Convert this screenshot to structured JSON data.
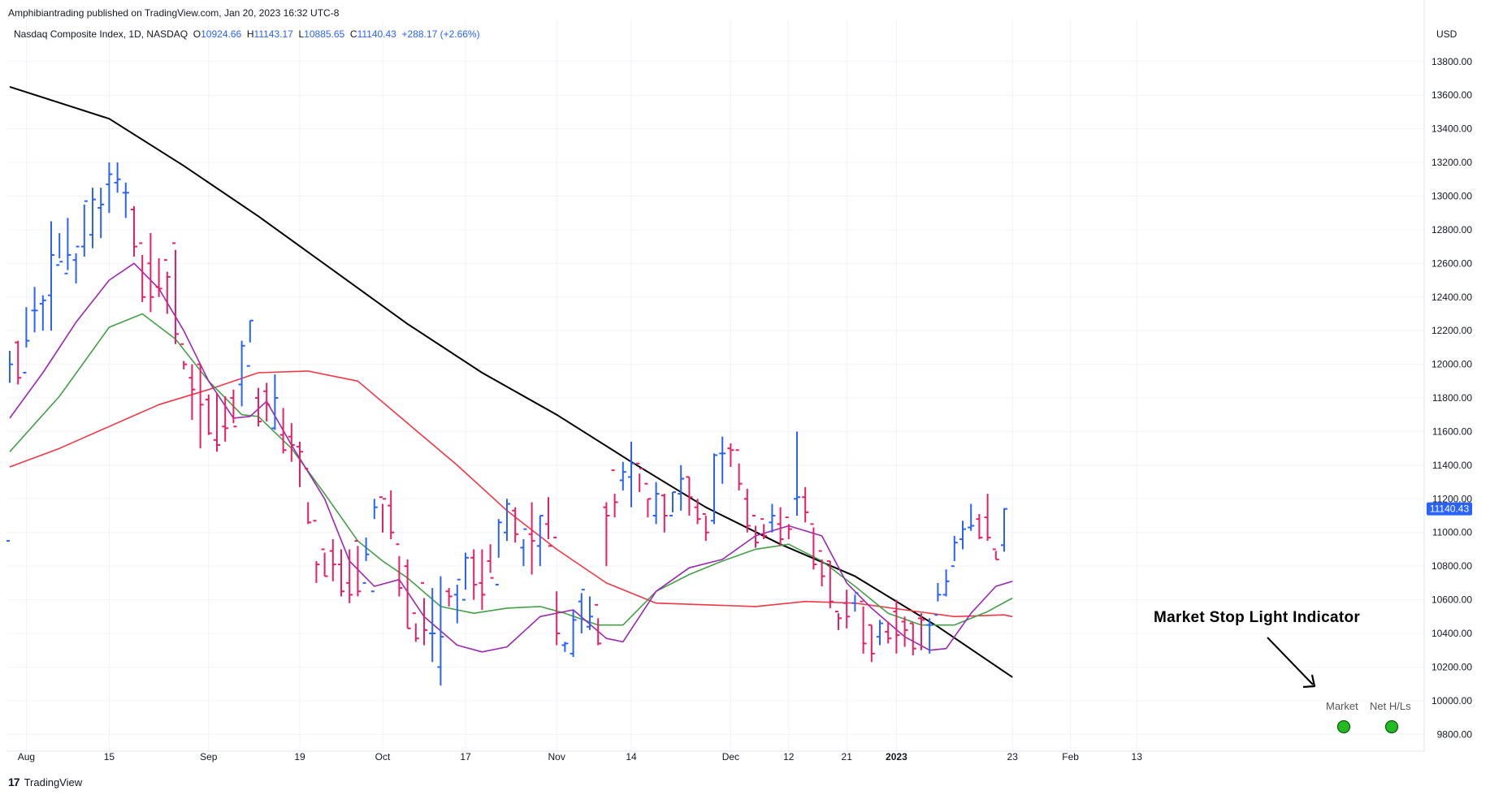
{
  "header": {
    "published": "Amphibiantrading published on TradingView.com, Jan 20, 2023 16:32 UTC-8",
    "symbol": "Nasdaq Composite Index, 1D, NASDAQ",
    "o_label": "O",
    "o_value": "10924.66",
    "h_label": "H",
    "h_value": "11143.17",
    "l_label": "L",
    "l_value": "10885.65",
    "c_label": "C",
    "c_value": "11140.43",
    "change": "+288.17 (+2.66%)",
    "currency": "USD"
  },
  "footer": {
    "brand": "TradingView",
    "logo": "17"
  },
  "annotation": {
    "text": "Market Stop Light Indicator",
    "lights": [
      {
        "label": "Market",
        "color": "#22bb22"
      },
      {
        "label": "Net H/Ls",
        "color": "#22bb22"
      }
    ]
  },
  "colors": {
    "up": "#2962ff",
    "down": "#e91e63",
    "sma200": "#000000",
    "ma50": "#f23645",
    "ma21": "#43a047",
    "ma10": "#9c27b0",
    "grid": "#f0f3fa"
  },
  "chart_data": {
    "type": "ohlc",
    "title": "Nasdaq Composite Index, 1D, NASDAQ",
    "currency": "USD",
    "ylim": [
      9700,
      14050
    ],
    "y_ticks": [
      "9800.00",
      "10000.00",
      "10200.00",
      "10400.00",
      "10600.00",
      "10800.00",
      "11000.00",
      "11200.00",
      "11400.00",
      "11600.00",
      "11800.00",
      "12000.00",
      "12200.00",
      "12400.00",
      "12600.00",
      "12800.00",
      "13000.00",
      "13200.00",
      "13400.00",
      "13600.00",
      "13800.00"
    ],
    "x_ticks": [
      {
        "label": "Aug",
        "idx": 2
      },
      {
        "label": "15",
        "idx": 12
      },
      {
        "label": "Sep",
        "idx": 24
      },
      {
        "label": "19",
        "idx": 35
      },
      {
        "label": "Oct",
        "idx": 45
      },
      {
        "label": "17",
        "idx": 55
      },
      {
        "label": "Nov",
        "idx": 66
      },
      {
        "label": "14",
        "idx": 75
      },
      {
        "label": "Dec",
        "idx": 87
      },
      {
        "label": "12",
        "idx": 94
      },
      {
        "label": "21",
        "idx": 101
      },
      {
        "label": "2023",
        "idx": 107
      },
      {
        "label": "23",
        "idx": 121
      },
      {
        "label": "Feb",
        "idx": 128
      },
      {
        "label": "13",
        "idx": 136
      }
    ],
    "last_price": "11140.43",
    "bars": [
      [
        10950,
        12080,
        11890,
        12000
      ],
      [
        12130,
        12140,
        11880,
        11920
      ],
      [
        11950,
        12340,
        12100,
        12140
      ],
      [
        12320,
        12460,
        12190,
        12320
      ],
      [
        12360,
        12410,
        12200,
        12380
      ],
      [
        12410,
        12850,
        12200,
        12650
      ],
      [
        12590,
        12780,
        12630,
        12610
      ],
      [
        12540,
        12870,
        12560,
        12650
      ],
      [
        12620,
        12660,
        12480,
        12700
      ],
      [
        12700,
        12950,
        12640,
        12970
      ],
      [
        12770,
        13050,
        12690,
        12980
      ],
      [
        12930,
        13050,
        12750,
        12950
      ],
      [
        13070,
        13200,
        12900,
        13130
      ],
      [
        13080,
        13200,
        13020,
        13100
      ],
      [
        13020,
        13080,
        12870,
        13020
      ],
      [
        12920,
        12940,
        12640,
        12700
      ],
      [
        12720,
        12650,
        12370,
        12400
      ],
      [
        12600,
        12780,
        12310,
        12400
      ],
      [
        12460,
        12630,
        12400,
        12450
      ],
      [
        12620,
        12550,
        12300,
        12520
      ],
      [
        12720,
        12680,
        12120,
        12180
      ],
      [
        12120,
        12020,
        11970,
        12000
      ],
      [
        11920,
        12000,
        11670,
        11850
      ],
      [
        12000,
        12000,
        11500,
        11760
      ],
      [
        11790,
        11820,
        11580,
        11590
      ],
      [
        11550,
        11830,
        11480,
        11520
      ],
      [
        11630,
        11810,
        11540,
        11620
      ],
      [
        11800,
        11850,
        11650,
        11630
      ],
      [
        11880,
        12140,
        11750,
        12110
      ],
      [
        11990,
        12260,
        12130,
        12260
      ],
      [
        11800,
        11860,
        11630,
        11660
      ],
      [
        11840,
        11890,
        11660,
        11760
      ],
      [
        11620,
        11940,
        11610,
        11800
      ],
      [
        11580,
        11740,
        11470,
        11490
      ],
      [
        11570,
        11650,
        11420,
        11520
      ],
      [
        11510,
        11540,
        11270,
        11480
      ],
      [
        11380,
        11180,
        11050,
        11060
      ],
      [
        11070,
        10830,
        10700,
        10810
      ],
      [
        10900,
        10880,
        10740,
        10740
      ],
      [
        10890,
        10960,
        10710,
        10810
      ],
      [
        10810,
        10900,
        10620,
        10650
      ],
      [
        10700,
        10900,
        10580,
        10630
      ],
      [
        10950,
        10920,
        10620,
        10650
      ],
      [
        10700,
        10970,
        10830,
        10870
      ],
      [
        10650,
        11200,
        11080,
        11150
      ],
      [
        11210,
        11170,
        11000,
        11200
      ],
      [
        11160,
        11250,
        10960,
        11000
      ],
      [
        10930,
        10860,
        10620,
        10670
      ],
      [
        10800,
        10840,
        10430,
        10430
      ],
      [
        10520,
        10460,
        10350,
        10370
      ],
      [
        10700,
        10610,
        10330,
        10420
      ],
      [
        10400,
        10670,
        10230,
        10400
      ],
      [
        10200,
        10740,
        10090,
        10380
      ],
      [
        10650,
        10670,
        10560,
        10620
      ],
      [
        10630,
        10690,
        10460,
        10720
      ],
      [
        10600,
        10880,
        10660,
        10850
      ],
      [
        10850,
        10900,
        10600,
        10690
      ],
      [
        10700,
        10900,
        10540,
        10630
      ],
      [
        10830,
        10930,
        10760,
        10730
      ],
      [
        10690,
        11080,
        10850,
        11060
      ],
      [
        11000,
        11200,
        10950,
        11170
      ],
      [
        11130,
        11150,
        10940,
        10990
      ],
      [
        10910,
        10960,
        10800,
        11020
      ],
      [
        10990,
        11180,
        10750,
        10950
      ],
      [
        10920,
        11100,
        10800,
        11100
      ],
      [
        11050,
        11210,
        10960,
        10920
      ],
      [
        10970,
        10650,
        10330,
        10400
      ],
      [
        10330,
        10350,
        10290,
        10340
      ],
      [
        10280,
        10540,
        10260,
        10480
      ],
      [
        10590,
        10640,
        10400,
        10660
      ],
      [
        10440,
        10620,
        10420,
        10500
      ],
      [
        10570,
        10490,
        10330,
        10340
      ],
      [
        11150,
        11180,
        10800,
        11100
      ],
      [
        11370,
        11230,
        11090,
        11180
      ],
      [
        11310,
        11420,
        11250,
        11360
      ],
      [
        11330,
        11540,
        11150,
        11410
      ],
      [
        11410,
        11350,
        11240,
        11380
      ],
      [
        11290,
        11200,
        11090,
        11200
      ],
      [
        11100,
        11300,
        11050,
        11230
      ],
      [
        11220,
        11230,
        11000,
        11100
      ],
      [
        11100,
        11240,
        11120,
        11240
      ],
      [
        11230,
        11400,
        11130,
        11320
      ],
      [
        11330,
        11330,
        11100,
        11210
      ],
      [
        11150,
        11200,
        11050,
        11080
      ],
      [
        11110,
        11100,
        10950,
        11000
      ],
      [
        11070,
        11470,
        11050,
        11460
      ],
      [
        11470,
        11570,
        11290,
        11470
      ],
      [
        11500,
        11530,
        11390,
        11490
      ],
      [
        11490,
        11410,
        11250,
        11290
      ],
      [
        11200,
        11260,
        11000,
        11040
      ],
      [
        11100,
        11040,
        10910,
        10940
      ],
      [
        11080,
        11050,
        10960,
        10980
      ],
      [
        11060,
        11170,
        11000,
        11100
      ],
      [
        11050,
        11150,
        10920,
        10960
      ],
      [
        11090,
        11050,
        10960,
        11020
      ],
      [
        11200,
        11600,
        11100,
        11210
      ],
      [
        11210,
        11270,
        11060,
        11120
      ],
      [
        11050,
        11030,
        10780,
        10810
      ],
      [
        10890,
        10840,
        10680,
        10740
      ],
      [
        10830,
        10830,
        10550,
        10590
      ],
      [
        10530,
        10520,
        10420,
        10490
      ],
      [
        10580,
        10660,
        10430,
        10500
      ],
      [
        10580,
        10630,
        10530,
        10640
      ],
      [
        10590,
        10560,
        10280,
        10340
      ],
      [
        10450,
        10450,
        10230,
        10280
      ],
      [
        10380,
        10480,
        10330,
        10460
      ],
      [
        10410,
        10470,
        10340,
        10370
      ],
      [
        10530,
        10600,
        10280,
        10390
      ],
      [
        10470,
        10500,
        10320,
        10420
      ],
      [
        10460,
        10460,
        10270,
        10310
      ],
      [
        10490,
        10520,
        10300,
        10480
      ],
      [
        10450,
        10490,
        10280,
        10450
      ],
      [
        10510,
        10700,
        10590,
        10630
      ],
      [
        10630,
        10780,
        10620,
        10710
      ],
      [
        10800,
        10980,
        10830,
        10940
      ],
      [
        10960,
        11070,
        10900,
        11020
      ],
      [
        11030,
        11170,
        11010,
        11040
      ],
      [
        11080,
        11110,
        10960,
        10970
      ],
      [
        11090,
        11230,
        10950,
        10970
      ],
      [
        10900,
        10890,
        10840,
        10840
      ],
      [
        10924.66,
        11143.17,
        10885.65,
        11140.43
      ]
    ],
    "sma200": [
      [
        0,
        13650
      ],
      [
        12,
        13460
      ],
      [
        21,
        13180
      ],
      [
        30,
        12880
      ],
      [
        39,
        12560
      ],
      [
        48,
        12240
      ],
      [
        57,
        11950
      ],
      [
        66,
        11700
      ],
      [
        75,
        11420
      ],
      [
        84,
        11150
      ],
      [
        93,
        10930
      ],
      [
        102,
        10740
      ],
      [
        112,
        10440
      ],
      [
        121,
        10140
      ]
    ],
    "ma50": [
      [
        0,
        11390
      ],
      [
        6,
        11500
      ],
      [
        12,
        11630
      ],
      [
        18,
        11760
      ],
      [
        24,
        11850
      ],
      [
        30,
        11950
      ],
      [
        36,
        11960
      ],
      [
        42,
        11900
      ],
      [
        48,
        11650
      ],
      [
        54,
        11400
      ],
      [
        60,
        11130
      ],
      [
        66,
        10900
      ],
      [
        72,
        10700
      ],
      [
        78,
        10580
      ],
      [
        84,
        10570
      ],
      [
        90,
        10560
      ],
      [
        96,
        10590
      ],
      [
        102,
        10580
      ],
      [
        108,
        10540
      ],
      [
        114,
        10500
      ],
      [
        120,
        10510
      ],
      [
        121,
        10500
      ]
    ],
    "ma21": [
      [
        0,
        11480
      ],
      [
        6,
        11810
      ],
      [
        12,
        12220
      ],
      [
        16,
        12300
      ],
      [
        20,
        12150
      ],
      [
        24,
        11900
      ],
      [
        28,
        11700
      ],
      [
        30,
        11690
      ],
      [
        34,
        11500
      ],
      [
        38,
        11230
      ],
      [
        42,
        10950
      ],
      [
        45,
        10830
      ],
      [
        48,
        10730
      ],
      [
        52,
        10560
      ],
      [
        56,
        10520
      ],
      [
        60,
        10550
      ],
      [
        64,
        10560
      ],
      [
        67,
        10520
      ],
      [
        71,
        10450
      ],
      [
        74,
        10450
      ],
      [
        78,
        10650
      ],
      [
        82,
        10750
      ],
      [
        86,
        10830
      ],
      [
        90,
        10900
      ],
      [
        94,
        10930
      ],
      [
        98,
        10830
      ],
      [
        102,
        10680
      ],
      [
        106,
        10520
      ],
      [
        110,
        10450
      ],
      [
        114,
        10450
      ],
      [
        118,
        10530
      ],
      [
        121,
        10610
      ]
    ],
    "ma10": [
      [
        0,
        11680
      ],
      [
        4,
        11950
      ],
      [
        8,
        12250
      ],
      [
        12,
        12500
      ],
      [
        15,
        12600
      ],
      [
        18,
        12450
      ],
      [
        21,
        12200
      ],
      [
        24,
        11900
      ],
      [
        27,
        11680
      ],
      [
        29,
        11690
      ],
      [
        31,
        11780
      ],
      [
        34,
        11520
      ],
      [
        38,
        11200
      ],
      [
        41,
        10830
      ],
      [
        44,
        10680
      ],
      [
        47,
        10720
      ],
      [
        50,
        10500
      ],
      [
        54,
        10330
      ],
      [
        57,
        10290
      ],
      [
        60,
        10320
      ],
      [
        64,
        10500
      ],
      [
        68,
        10540
      ],
      [
        72,
        10370
      ],
      [
        74,
        10350
      ],
      [
        78,
        10650
      ],
      [
        82,
        10790
      ],
      [
        86,
        10840
      ],
      [
        90,
        10980
      ],
      [
        94,
        11040
      ],
      [
        98,
        10980
      ],
      [
        101,
        10700
      ],
      [
        104,
        10550
      ],
      [
        108,
        10380
      ],
      [
        111,
        10300
      ],
      [
        113,
        10310
      ],
      [
        116,
        10520
      ],
      [
        119,
        10680
      ],
      [
        121,
        10710
      ]
    ]
  }
}
